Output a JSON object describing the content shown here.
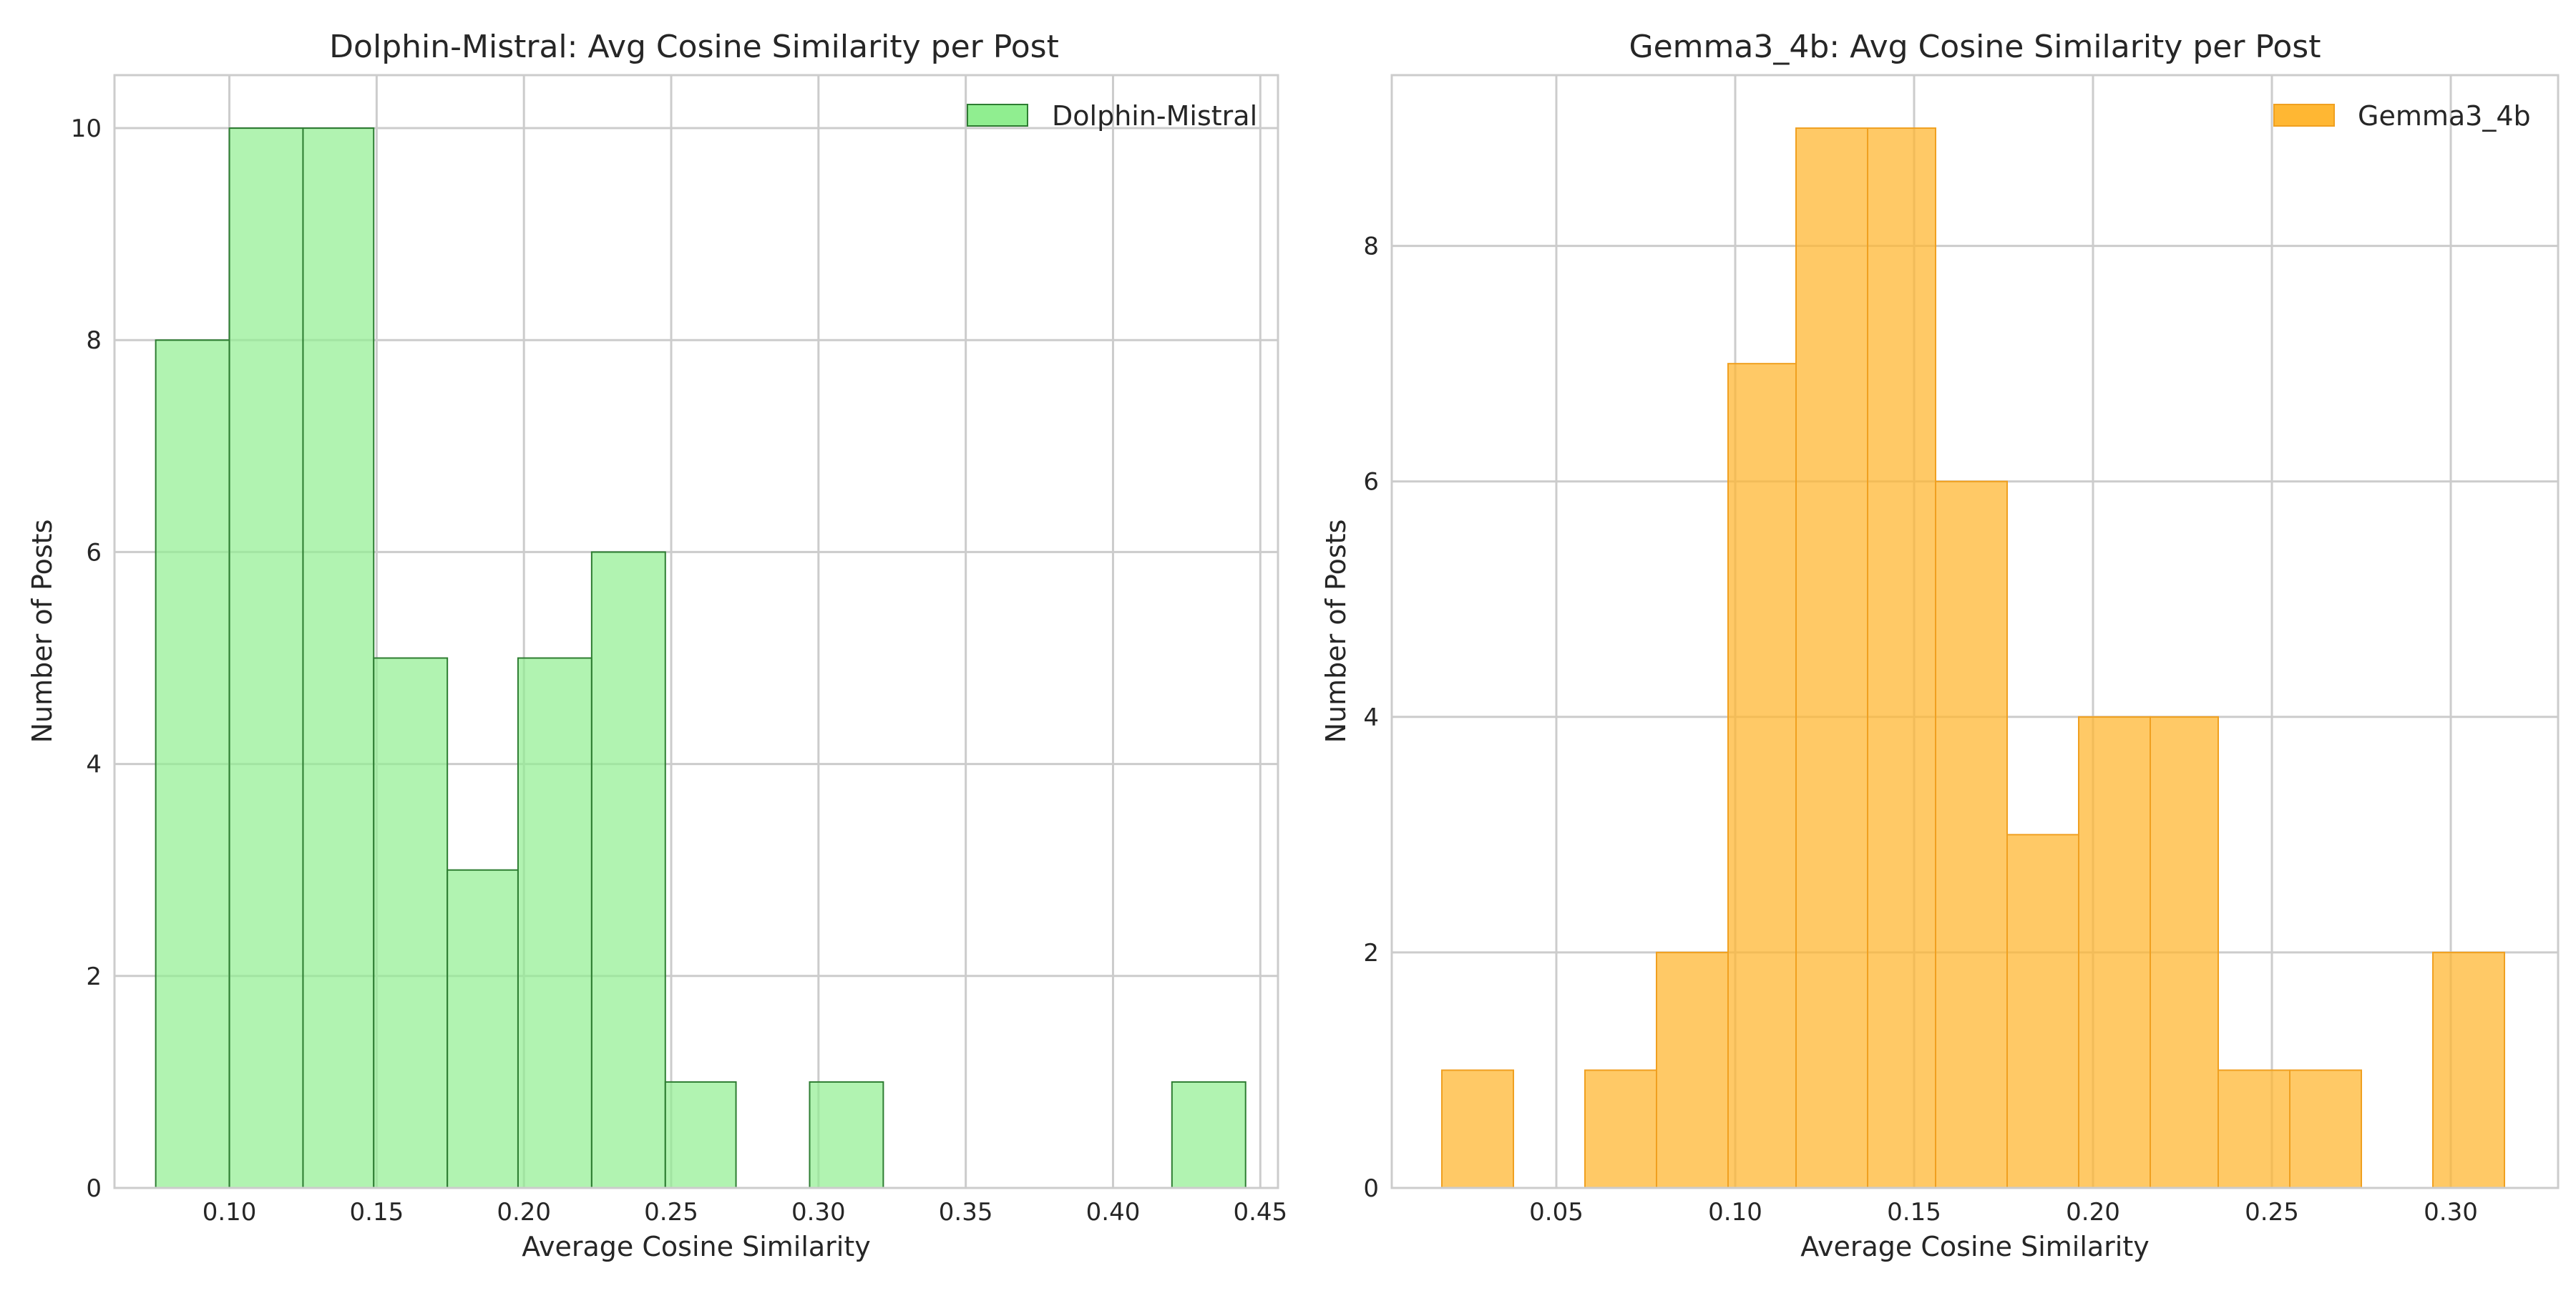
{
  "chart_data": [
    {
      "type": "bar",
      "histogram": true,
      "title": "Dolphin-Mistral: Avg Cosine Similarity per Post",
      "xlabel": "Average Cosine Similarity",
      "ylabel": "Number of Posts",
      "xlim": [
        0.061,
        0.456
      ],
      "ylim": [
        0,
        10.5
      ],
      "xticks": [
        0.1,
        0.15,
        0.2,
        0.25,
        0.3,
        0.35,
        0.4,
        0.45
      ],
      "xtick_labels": [
        "0.10",
        "0.15",
        "0.20",
        "0.25",
        "0.30",
        "0.35",
        "0.40",
        "0.45"
      ],
      "yticks": [
        0,
        2,
        4,
        6,
        8,
        10
      ],
      "ytick_labels": [
        "0",
        "2",
        "4",
        "6",
        "8",
        "10"
      ],
      "grid": true,
      "legend_position": "top-right",
      "series": [
        {
          "name": "Dolphin-Mistral",
          "color": "#90ee90",
          "edge_color": "#2e7d32",
          "bins": [
            {
              "x0": 0.075,
              "x1": 0.1,
              "count": 8
            },
            {
              "x0": 0.1,
              "x1": 0.125,
              "count": 10
            },
            {
              "x0": 0.125,
              "x1": 0.149,
              "count": 10
            },
            {
              "x0": 0.149,
              "x1": 0.174,
              "count": 5
            },
            {
              "x0": 0.174,
              "x1": 0.198,
              "count": 3
            },
            {
              "x0": 0.198,
              "x1": 0.223,
              "count": 5
            },
            {
              "x0": 0.223,
              "x1": 0.248,
              "count": 6
            },
            {
              "x0": 0.248,
              "x1": 0.272,
              "count": 1
            },
            {
              "x0": 0.272,
              "x1": 0.297,
              "count": 0
            },
            {
              "x0": 0.297,
              "x1": 0.322,
              "count": 1
            },
            {
              "x0": 0.322,
              "x1": 0.346,
              "count": 0
            },
            {
              "x0": 0.346,
              "x1": 0.371,
              "count": 0
            },
            {
              "x0": 0.371,
              "x1": 0.396,
              "count": 0
            },
            {
              "x0": 0.396,
              "x1": 0.42,
              "count": 0
            },
            {
              "x0": 0.42,
              "x1": 0.445,
              "count": 1
            }
          ]
        }
      ]
    },
    {
      "type": "bar",
      "histogram": true,
      "title": "Gemma3_4b: Avg Cosine Similarity per Post",
      "xlabel": "Average Cosine Similarity",
      "ylabel": "Number of Posts",
      "xlim": [
        0.004,
        0.33
      ],
      "ylim": [
        0,
        9.45
      ],
      "xticks": [
        0.05,
        0.1,
        0.15,
        0.2,
        0.25,
        0.3
      ],
      "xtick_labels": [
        "0.05",
        "0.10",
        "0.15",
        "0.20",
        "0.25",
        "0.30"
      ],
      "yticks": [
        0,
        2,
        4,
        6,
        8
      ],
      "ytick_labels": [
        "0",
        "2",
        "4",
        "6",
        "8"
      ],
      "grid": true,
      "legend_position": "top-right",
      "series": [
        {
          "name": "Gemma3_4b",
          "color": "#ffb733",
          "edge_color": "#f0a020",
          "bins": [
            {
              "x0": 0.018,
              "x1": 0.038,
              "count": 1
            },
            {
              "x0": 0.038,
              "x1": 0.058,
              "count": 0
            },
            {
              "x0": 0.058,
              "x1": 0.078,
              "count": 1
            },
            {
              "x0": 0.078,
              "x1": 0.098,
              "count": 2
            },
            {
              "x0": 0.098,
              "x1": 0.117,
              "count": 7
            },
            {
              "x0": 0.117,
              "x1": 0.137,
              "count": 9
            },
            {
              "x0": 0.137,
              "x1": 0.156,
              "count": 9
            },
            {
              "x0": 0.156,
              "x1": 0.176,
              "count": 6
            },
            {
              "x0": 0.176,
              "x1": 0.196,
              "count": 3
            },
            {
              "x0": 0.196,
              "x1": 0.216,
              "count": 4
            },
            {
              "x0": 0.216,
              "x1": 0.235,
              "count": 4
            },
            {
              "x0": 0.235,
              "x1": 0.255,
              "count": 1
            },
            {
              "x0": 0.255,
              "x1": 0.275,
              "count": 1
            },
            {
              "x0": 0.275,
              "x1": 0.295,
              "count": 0
            },
            {
              "x0": 0.295,
              "x1": 0.315,
              "count": 2
            }
          ]
        }
      ]
    }
  ]
}
